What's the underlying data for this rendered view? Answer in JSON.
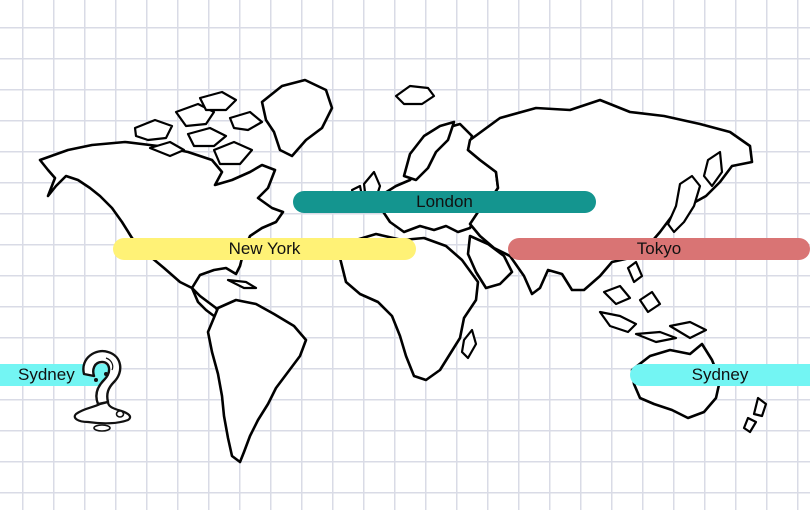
{
  "map": {
    "style": "hand-drawn world outline on grid paper",
    "grid_color": "#d9dbe6",
    "outline_color": "#000000"
  },
  "timezones": [
    {
      "id": "london",
      "label": "London",
      "color": "#14958f"
    },
    {
      "id": "new-york",
      "label": "New York",
      "color": "#fff276"
    },
    {
      "id": "tokyo",
      "label": "Tokyo",
      "color": "#d97474"
    },
    {
      "id": "sydney-left",
      "label": "Sydney",
      "color": "#73f5f3"
    },
    {
      "id": "sydney-right",
      "label": "Sydney",
      "color": "#73f5f3"
    }
  ],
  "mascot": {
    "icon": "question-mark-character-icon"
  }
}
